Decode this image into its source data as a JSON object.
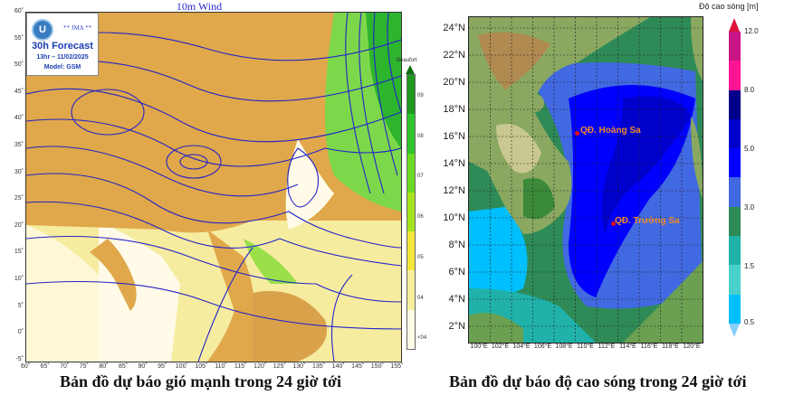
{
  "wind_map": {
    "title": "10m Wind",
    "agency_label": "** JMA **",
    "logo_text": "JMA",
    "forecast_title": "30h Forecast",
    "forecast_time": "13hr – 11/02/2025",
    "model": "Model: GSM",
    "lat_labels": [
      "60˚",
      "55˚",
      "50˚",
      "45˚",
      "40˚",
      "35˚",
      "30˚",
      "25˚",
      "20˚",
      "15˚",
      "10˚",
      "5˚",
      "0˚",
      "-5˚"
    ],
    "lon_labels": [
      "60˚",
      "65˚",
      "70˚",
      "75˚",
      "80˚",
      "85˚",
      "90˚",
      "95˚",
      "100˚",
      "105˚",
      "110˚",
      "115˚",
      "120˚",
      "125˚",
      "130˚",
      "135˚",
      "140˚",
      "145˚",
      "150˚",
      "155˚"
    ],
    "legend": {
      "title": "Beaufort",
      "labels": [
        "09",
        "08",
        "07",
        "06",
        "05",
        "04",
        "<04"
      ],
      "colors": [
        "#1e9a1e",
        "#2ec42e",
        "#6ada22",
        "#a4e41e",
        "#f4e63c",
        "#f7ef9e",
        "#fffbe6"
      ]
    },
    "caption": "Bản đồ dự báo gió mạnh trong 24 giờ tới"
  },
  "wave_map": {
    "lat_labels": [
      "24°N",
      "22°N",
      "20°N",
      "18°N",
      "16°N",
      "14°N",
      "12°N",
      "10°N",
      "8°N",
      "6°N",
      "4°N",
      "2°N"
    ],
    "lon_labels": [
      "100°E",
      "102°E",
      "104°E",
      "106°E",
      "108°E",
      "110°E",
      "112°E",
      "114°E",
      "116°E",
      "118°E",
      "120°E"
    ],
    "places": [
      "QĐ. Hoàng Sa",
      "QĐ. Trường Sa"
    ],
    "colorbar": {
      "title": "Độ cao sóng [m]",
      "ticks": [
        "12.0",
        "8.0",
        "5.0",
        "3.0",
        "1.5",
        "0.5"
      ],
      "colors_top_to_bottom": [
        "#c71585",
        "#ff1493",
        "#00008b",
        "#0000cd",
        "#0000ff",
        "#4169e1",
        "#2e8b57",
        "#20b2aa",
        "#48d1cc",
        "#00bfff"
      ],
      "over_color": "#dc143c",
      "under_color": "#87cefa"
    },
    "caption": "Bản đồ dự báo độ cao sóng trong 24 giờ tới"
  }
}
